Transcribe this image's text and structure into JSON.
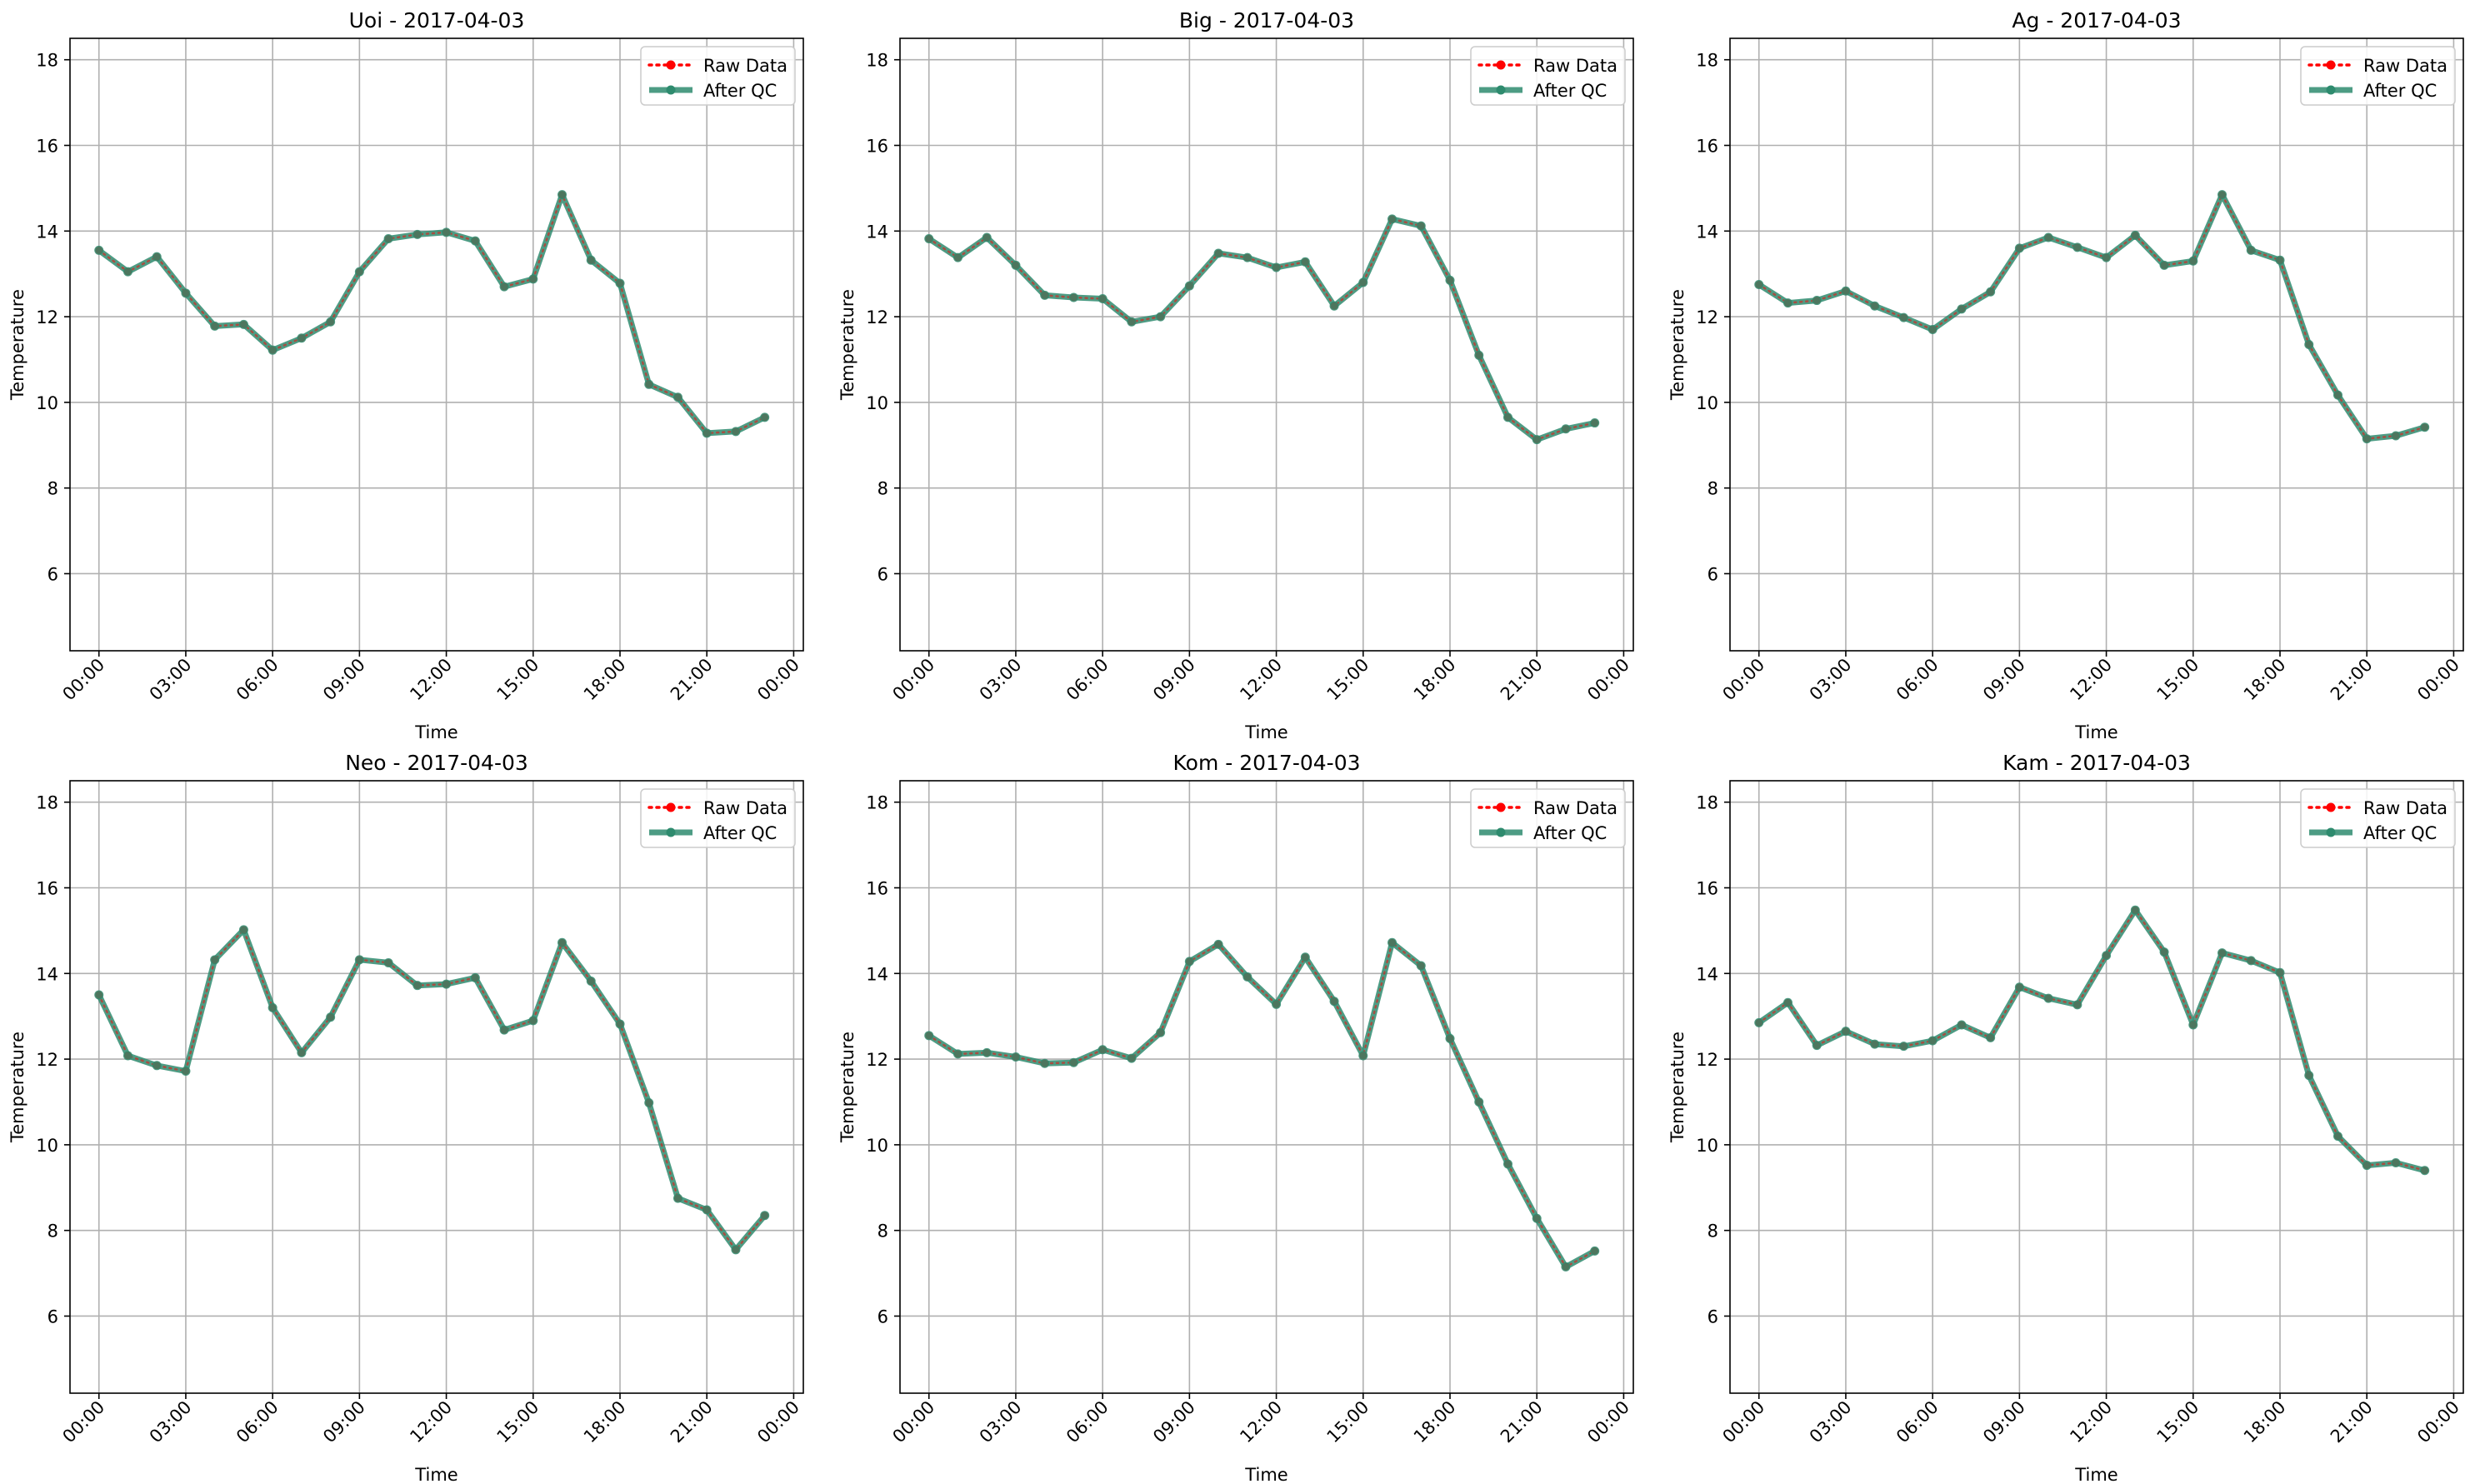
{
  "figure": {
    "background": "#ffffff"
  },
  "colors": {
    "raw": "#ff0000",
    "qc": "#2e8b6e",
    "grid": "#b0b0b0",
    "axes": "#000000",
    "legend_border": "#cccccc"
  },
  "legend": {
    "placement": "upper right",
    "entries": [
      "Raw Data",
      "After QC"
    ]
  },
  "chart_data": [
    {
      "type": "line",
      "title": "Uoi - 2017-04-03",
      "xlabel": "Time",
      "ylabel": "Temperature",
      "ylim": [
        4.2,
        18.5
      ],
      "xlim": [
        "2017-04-02 23:00",
        "2017-04-04 00:20"
      ],
      "yticks": [
        6,
        8,
        10,
        12,
        14,
        16,
        18
      ],
      "xticks": [
        "00:00",
        "03:00",
        "06:00",
        "09:00",
        "12:00",
        "15:00",
        "18:00",
        "21:00",
        "00:00"
      ],
      "grid": true,
      "x": [
        "00:00",
        "01:00",
        "02:00",
        "03:00",
        "04:00",
        "05:00",
        "06:00",
        "07:00",
        "08:00",
        "09:00",
        "10:00",
        "11:00",
        "12:00",
        "13:00",
        "14:00",
        "15:00",
        "16:00",
        "17:00",
        "18:00",
        "19:00",
        "20:00",
        "21:00",
        "22:00",
        "23:00"
      ],
      "series": [
        {
          "name": "Raw Data",
          "values": [
            13.55,
            13.05,
            13.4,
            12.55,
            11.78,
            11.82,
            11.22,
            11.5,
            11.88,
            13.05,
            13.82,
            13.92,
            13.97,
            13.77,
            12.7,
            12.88,
            14.85,
            13.32,
            12.78,
            10.42,
            10.12,
            9.28,
            9.32,
            9.65
          ]
        },
        {
          "name": "After QC",
          "values": [
            13.55,
            13.05,
            13.4,
            12.55,
            11.78,
            11.82,
            11.22,
            11.5,
            11.88,
            13.05,
            13.82,
            13.92,
            13.97,
            13.77,
            12.7,
            12.88,
            14.85,
            13.32,
            12.78,
            10.42,
            10.12,
            9.28,
            9.32,
            9.65
          ]
        }
      ]
    },
    {
      "type": "line",
      "title": "Big - 2017-04-03",
      "xlabel": "Time",
      "ylabel": "Temperature",
      "ylim": [
        4.2,
        18.5
      ],
      "xlim": [
        "2017-04-02 23:00",
        "2017-04-04 00:20"
      ],
      "yticks": [
        6,
        8,
        10,
        12,
        14,
        16,
        18
      ],
      "xticks": [
        "00:00",
        "03:00",
        "06:00",
        "09:00",
        "12:00",
        "15:00",
        "18:00",
        "21:00",
        "00:00"
      ],
      "grid": true,
      "x": [
        "00:00",
        "01:00",
        "02:00",
        "03:00",
        "04:00",
        "05:00",
        "06:00",
        "07:00",
        "08:00",
        "09:00",
        "10:00",
        "11:00",
        "12:00",
        "13:00",
        "14:00",
        "15:00",
        "16:00",
        "17:00",
        "18:00",
        "19:00",
        "20:00",
        "21:00",
        "22:00",
        "23:00"
      ],
      "series": [
        {
          "name": "Raw Data",
          "values": [
            13.82,
            13.38,
            13.85,
            13.2,
            12.5,
            12.45,
            12.42,
            11.88,
            12.0,
            12.72,
            13.48,
            13.38,
            13.15,
            13.28,
            12.25,
            12.8,
            14.28,
            14.12,
            12.85,
            11.1,
            9.65,
            9.13,
            9.38,
            9.52
          ]
        },
        {
          "name": "After QC",
          "values": [
            13.82,
            13.38,
            13.85,
            13.2,
            12.5,
            12.45,
            12.42,
            11.88,
            12.0,
            12.72,
            13.48,
            13.38,
            13.15,
            13.28,
            12.25,
            12.8,
            14.28,
            14.12,
            12.85,
            11.1,
            9.65,
            9.13,
            9.38,
            9.52
          ]
        }
      ]
    },
    {
      "type": "line",
      "title": "Ag - 2017-04-03",
      "xlabel": "Time",
      "ylabel": "Temperature",
      "ylim": [
        4.2,
        18.5
      ],
      "xlim": [
        "2017-04-02 23:00",
        "2017-04-04 00:20"
      ],
      "yticks": [
        6,
        8,
        10,
        12,
        14,
        16,
        18
      ],
      "xticks": [
        "00:00",
        "03:00",
        "06:00",
        "09:00",
        "12:00",
        "15:00",
        "18:00",
        "21:00",
        "00:00"
      ],
      "grid": true,
      "x": [
        "00:00",
        "01:00",
        "02:00",
        "03:00",
        "04:00",
        "05:00",
        "06:00",
        "07:00",
        "08:00",
        "09:00",
        "10:00",
        "11:00",
        "12:00",
        "13:00",
        "14:00",
        "15:00",
        "16:00",
        "17:00",
        "18:00",
        "19:00",
        "20:00",
        "21:00",
        "22:00",
        "23:00"
      ],
      "series": [
        {
          "name": "Raw Data",
          "values": [
            12.75,
            12.32,
            12.38,
            12.6,
            12.25,
            11.98,
            11.7,
            12.18,
            12.58,
            13.6,
            13.85,
            13.62,
            13.38,
            13.9,
            13.2,
            13.3,
            14.85,
            13.55,
            13.32,
            11.35,
            10.17,
            9.15,
            9.22,
            9.42
          ]
        },
        {
          "name": "After QC",
          "values": [
            12.75,
            12.32,
            12.38,
            12.6,
            12.25,
            11.98,
            11.7,
            12.18,
            12.58,
            13.6,
            13.85,
            13.62,
            13.38,
            13.9,
            13.2,
            13.3,
            14.85,
            13.55,
            13.32,
            11.35,
            10.17,
            9.15,
            9.22,
            9.42
          ]
        }
      ]
    },
    {
      "type": "line",
      "title": "Neo - 2017-04-03",
      "xlabel": "Time",
      "ylabel": "Temperature",
      "ylim": [
        4.2,
        18.5
      ],
      "xlim": [
        "2017-04-02 23:00",
        "2017-04-04 00:20"
      ],
      "yticks": [
        6,
        8,
        10,
        12,
        14,
        16,
        18
      ],
      "xticks": [
        "00:00",
        "03:00",
        "06:00",
        "09:00",
        "12:00",
        "15:00",
        "18:00",
        "21:00",
        "00:00"
      ],
      "grid": true,
      "x": [
        "00:00",
        "01:00",
        "02:00",
        "03:00",
        "04:00",
        "05:00",
        "06:00",
        "07:00",
        "08:00",
        "09:00",
        "10:00",
        "11:00",
        "12:00",
        "13:00",
        "14:00",
        "15:00",
        "16:00",
        "17:00",
        "18:00",
        "19:00",
        "20:00",
        "21:00",
        "22:00",
        "23:00"
      ],
      "series": [
        {
          "name": "Raw Data",
          "values": [
            13.5,
            12.08,
            11.85,
            11.72,
            14.32,
            15.02,
            13.2,
            12.15,
            12.98,
            14.32,
            14.25,
            13.72,
            13.75,
            13.9,
            12.68,
            12.9,
            14.72,
            13.82,
            12.82,
            10.98,
            8.75,
            8.48,
            7.55,
            8.35
          ]
        },
        {
          "name": "After QC",
          "values": [
            13.5,
            12.08,
            11.85,
            11.72,
            14.32,
            15.02,
            13.2,
            12.15,
            12.98,
            14.32,
            14.25,
            13.72,
            13.75,
            13.9,
            12.68,
            12.9,
            14.72,
            13.82,
            12.82,
            10.98,
            8.75,
            8.48,
            7.55,
            8.35
          ]
        }
      ]
    },
    {
      "type": "line",
      "title": "Kom - 2017-04-03",
      "xlabel": "Time",
      "ylabel": "Temperature",
      "ylim": [
        4.2,
        18.5
      ],
      "xlim": [
        "2017-04-02 23:00",
        "2017-04-04 00:20"
      ],
      "yticks": [
        6,
        8,
        10,
        12,
        14,
        16,
        18
      ],
      "xticks": [
        "00:00",
        "03:00",
        "06:00",
        "09:00",
        "12:00",
        "15:00",
        "18:00",
        "21:00",
        "00:00"
      ],
      "grid": true,
      "x": [
        "00:00",
        "01:00",
        "02:00",
        "03:00",
        "04:00",
        "05:00",
        "06:00",
        "07:00",
        "08:00",
        "09:00",
        "10:00",
        "11:00",
        "12:00",
        "13:00",
        "14:00",
        "15:00",
        "16:00",
        "17:00",
        "18:00",
        "19:00",
        "20:00",
        "21:00",
        "22:00",
        "23:00"
      ],
      "series": [
        {
          "name": "Raw Data",
          "values": [
            12.55,
            12.12,
            12.15,
            12.05,
            11.9,
            11.92,
            12.22,
            12.02,
            12.62,
            14.28,
            14.68,
            13.92,
            13.28,
            14.38,
            13.35,
            12.08,
            14.72,
            14.18,
            12.48,
            11.0,
            9.55,
            8.28,
            7.15,
            7.52
          ]
        },
        {
          "name": "After QC",
          "values": [
            12.55,
            12.12,
            12.15,
            12.05,
            11.9,
            11.92,
            12.22,
            12.02,
            12.62,
            14.28,
            14.68,
            13.92,
            13.28,
            14.38,
            13.35,
            12.08,
            14.72,
            14.18,
            12.48,
            11.0,
            9.55,
            8.28,
            7.15,
            7.52
          ]
        }
      ]
    },
    {
      "type": "line",
      "title": "Kam - 2017-04-03",
      "xlabel": "Time",
      "ylabel": "Temperature",
      "ylim": [
        4.2,
        18.5
      ],
      "xlim": [
        "2017-04-02 23:00",
        "2017-04-04 00:20"
      ],
      "yticks": [
        6,
        8,
        10,
        12,
        14,
        16,
        18
      ],
      "xticks": [
        "00:00",
        "03:00",
        "06:00",
        "09:00",
        "12:00",
        "15:00",
        "18:00",
        "21:00",
        "00:00"
      ],
      "grid": true,
      "x": [
        "00:00",
        "01:00",
        "02:00",
        "03:00",
        "04:00",
        "05:00",
        "06:00",
        "07:00",
        "08:00",
        "09:00",
        "10:00",
        "11:00",
        "12:00",
        "13:00",
        "14:00",
        "15:00",
        "16:00",
        "17:00",
        "18:00",
        "19:00",
        "20:00",
        "21:00",
        "22:00",
        "23:00"
      ],
      "series": [
        {
          "name": "Raw Data",
          "values": [
            12.85,
            13.32,
            12.32,
            12.65,
            12.35,
            12.3,
            12.43,
            12.8,
            12.5,
            13.68,
            13.42,
            13.27,
            14.42,
            15.48,
            14.5,
            12.8,
            14.48,
            14.3,
            14.02,
            11.62,
            10.2,
            9.52,
            9.58,
            9.4
          ]
        },
        {
          "name": "After QC",
          "values": [
            12.85,
            13.32,
            12.32,
            12.65,
            12.35,
            12.3,
            12.43,
            12.8,
            12.5,
            13.68,
            13.42,
            13.27,
            14.42,
            15.48,
            14.5,
            12.8,
            14.48,
            14.3,
            14.02,
            11.62,
            10.2,
            9.52,
            9.58,
            9.4
          ]
        }
      ]
    }
  ]
}
